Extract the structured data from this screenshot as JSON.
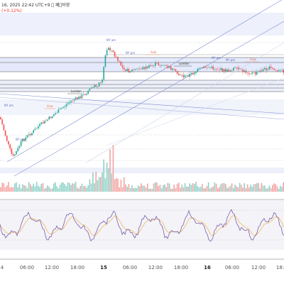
{
  "header": {
    "line1": "16, 2025 22:42 UTC+9 \u0000 페\u0000바영",
    "line2": "(+0.12%)"
  },
  "session_labels": {
    "ny_am": "NY am",
    "ny_pm": "NY pm",
    "asia": "Asia",
    "london": "London"
  },
  "x_axis": {
    "labels": [
      "4",
      "06:00",
      "12:00",
      "18:00",
      "15",
      "06:00",
      "12:00",
      "18:00",
      "16",
      "06:00",
      "12:00",
      "18:00"
    ]
  },
  "colors": {
    "up": "#26a69a",
    "down": "#ef5350",
    "zone_fill": "#e3e8fb",
    "level_line": "#555555",
    "trend_line": "#7e8fd1",
    "oscillator": "#7b5fa8",
    "signal": "#f0b24a"
  }
}
